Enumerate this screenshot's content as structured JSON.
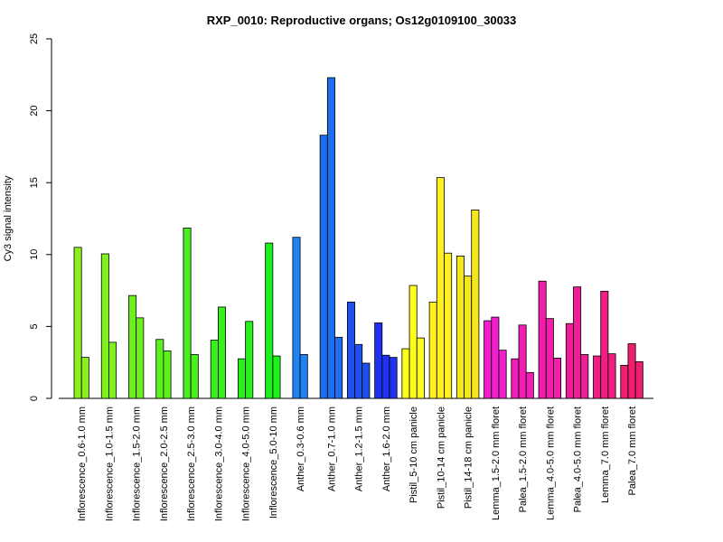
{
  "chart_data": {
    "type": "bar",
    "title": "RXP_0010: Reproductive organs; Os12g0109100_30033",
    "xlabel": "",
    "ylabel": "Cy3 signal intensity",
    "ylim": [
      0,
      25
    ],
    "yticks": [
      0,
      5,
      10,
      15,
      20,
      25
    ],
    "grid": false,
    "groups": [
      {
        "label": "Inflorescence_0.6-1.0 mm",
        "color": "#8CF01E",
        "values": [
          10.5,
          2.85
        ]
      },
      {
        "label": "Inflorescence_1.0-1.5 mm",
        "color": "#80F01E",
        "values": [
          10.05,
          3.9
        ]
      },
      {
        "label": "Inflorescence_1.5-2.0 mm",
        "color": "#6EF01E",
        "values": [
          7.15,
          5.6
        ]
      },
      {
        "label": "Inflorescence_2.0-2.5 mm",
        "color": "#5CF01E",
        "values": [
          4.1,
          3.3
        ]
      },
      {
        "label": "Inflorescence_2.5-3.0 mm",
        "color": "#4AF01E",
        "values": [
          11.85,
          3.05
        ]
      },
      {
        "label": "Inflorescence_3.0-4.0 mm",
        "color": "#38F01E",
        "values": [
          4.05,
          6.35
        ]
      },
      {
        "label": "Inflorescence_4.0-5.0 mm",
        "color": "#2AF01E",
        "values": [
          2.75,
          5.35
        ]
      },
      {
        "label": "Inflorescence_5.0-10 mm",
        "color": "#1EF01E",
        "values": [
          10.8,
          2.95
        ]
      },
      {
        "label": "Anther_0.3-0.6 mm",
        "color": "#1E82F0",
        "values": [
          11.2,
          3.05
        ]
      },
      {
        "label": "Anther_0.7-1.0 mm",
        "color": "#1E6EF0",
        "values": [
          18.3,
          22.3,
          4.25
        ]
      },
      {
        "label": "Anther_1.2-1.5 mm",
        "color": "#1E50F0",
        "values": [
          6.7,
          3.75,
          2.45
        ]
      },
      {
        "label": "Anther_1.6-2.0 mm",
        "color": "#1E32F0",
        "values": [
          5.25,
          3.0,
          2.85
        ]
      },
      {
        "label": "Pistil_5-10 cm panicle",
        "color": "#FFFF1E",
        "values": [
          3.45,
          7.85,
          4.2
        ]
      },
      {
        "label": "Pistil_10-14 cm panicle",
        "color": "#FFF01E",
        "values": [
          6.7,
          15.35,
          10.1
        ]
      },
      {
        "label": "Pistil_14-18 cm panicle",
        "color": "#F5E61E",
        "values": [
          9.9,
          8.5,
          13.1
        ]
      },
      {
        "label": "Lemma_1.5-2.0 mm floret",
        "color": "#F01ECD",
        "values": [
          5.4,
          5.65,
          3.35
        ]
      },
      {
        "label": "Palea_1.5-2.0 mm floret",
        "color": "#F01EB4",
        "values": [
          2.75,
          5.1,
          1.8
        ]
      },
      {
        "label": "Lemma_4.0-5.0 mm floret",
        "color": "#F01EAA",
        "values": [
          8.15,
          5.55,
          2.8
        ]
      },
      {
        "label": "Palea_4.0-5.0 mm floret",
        "color": "#F01E96",
        "values": [
          5.2,
          7.75,
          3.05
        ]
      },
      {
        "label": "Lemma_7.0 mm floret",
        "color": "#F01E82",
        "values": [
          2.95,
          7.45,
          3.1
        ]
      },
      {
        "label": "Palea_7.0 mm floret",
        "color": "#F01E6E",
        "values": [
          2.3,
          3.8,
          2.55
        ]
      }
    ]
  }
}
